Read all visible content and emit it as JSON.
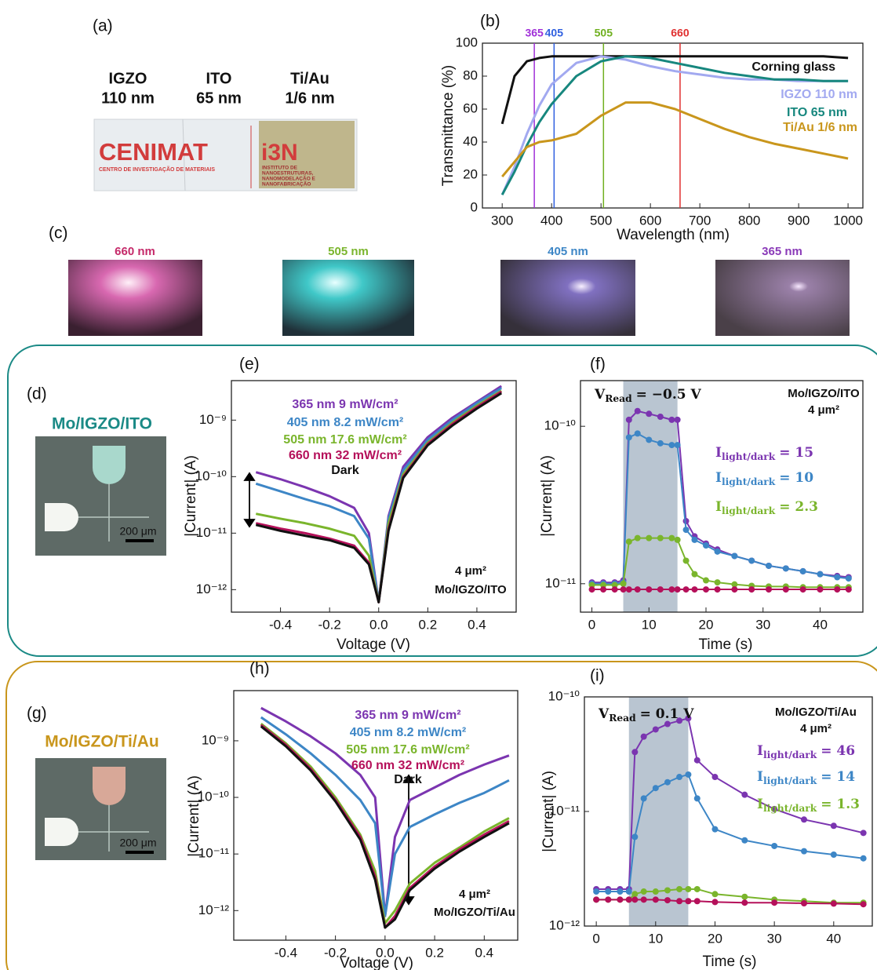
{
  "photo_a": {
    "panel_label": "(a)",
    "samples": [
      {
        "name": "IGZO",
        "thickness": "110 nm"
      },
      {
        "name": "ITO",
        "thickness": "65 nm"
      },
      {
        "name": "Ti/Au",
        "thickness": "1/6 nm"
      }
    ],
    "logo": {
      "left": "CENIMAT",
      "left_sub": "CENTRO DE INVESTIGAÇÃO DE MATERIAIS",
      "right": "i3N",
      "right_sub": [
        "INSTITUTO DE",
        "NANOESTRUTURAS,",
        "NANOMODELAÇÃO E",
        "NANOFABRICAÇÃO"
      ]
    }
  },
  "photo_c": {
    "panel_label": "(c)",
    "captions": [
      "660 nm",
      "505 nm",
      "405 nm",
      "365 nm"
    ],
    "caption_colors": [
      "#c52a6a",
      "#7ab52c",
      "#3d86c6",
      "#8a3ab8"
    ]
  },
  "device_d": {
    "panel_label": "(d)",
    "title": "Mo/IGZO/ITO",
    "color": "#1b8a86",
    "scale": "200 μm"
  },
  "device_g": {
    "panel_label": "(g)",
    "title": "Mo/IGZO/Ti/Au",
    "color": "#c9961c",
    "scale": "200 μm"
  },
  "chart_data": [
    {
      "type": "line",
      "panel_label": "(b)",
      "xlabel": "Wavelength (nm)",
      "ylabel": "Transmittance (%)",
      "x": [
        300,
        325,
        350,
        375,
        400,
        450,
        500,
        550,
        600,
        650,
        700,
        750,
        800,
        850,
        900,
        950,
        1000
      ],
      "xlim": [
        260,
        1030
      ],
      "xticks": [
        300,
        400,
        500,
        600,
        700,
        800,
        900,
        1000
      ],
      "ylim": [
        0,
        100
      ],
      "yticks": [
        0,
        20,
        40,
        60,
        80,
        100
      ],
      "series": [
        {
          "name": "Corning glass",
          "color": "#111111",
          "values": [
            51,
            80,
            89,
            91,
            92,
            92,
            92,
            92,
            92,
            92,
            92,
            92,
            92,
            92,
            92,
            92,
            91
          ]
        },
        {
          "name": "IGZO 110 nm",
          "color": "#a2a9f0",
          "values": [
            8,
            25,
            45,
            62,
            75,
            88,
            92,
            90,
            86,
            83,
            81,
            79,
            78,
            78,
            77,
            77,
            77
          ]
        },
        {
          "name": "ITO 65 nm",
          "color": "#17877e",
          "values": [
            8,
            22,
            38,
            52,
            63,
            80,
            89,
            92,
            91,
            88,
            85,
            82,
            80,
            78,
            78,
            77,
            77
          ]
        },
        {
          "name": "Ti/Au 1/6 nm",
          "color": "#c9961c",
          "values": [
            19,
            28,
            37,
            40,
            41,
            45,
            56,
            64,
            64,
            60,
            54,
            48,
            43,
            39,
            36,
            33,
            30
          ]
        }
      ],
      "wavelength_markers": {
        "values": [
          365,
          405,
          505,
          660
        ],
        "colors": [
          "#a030d8",
          "#3060e0",
          "#70b020",
          "#e03030"
        ]
      }
    },
    {
      "type": "line",
      "panel_label": "(e)",
      "ylog": true,
      "xlabel": "Voltage (V)",
      "ylabel": "|Current| (A)",
      "x": [
        -0.5,
        -0.4,
        -0.3,
        -0.2,
        -0.1,
        -0.04,
        0,
        0.04,
        0.1,
        0.2,
        0.3,
        0.4,
        0.5
      ],
      "xlim": [
        -0.6,
        0.56
      ],
      "xticks": [
        -0.4,
        -0.2,
        {
          "value": 0,
          "label": "0.0"
        },
        0.2,
        0.4
      ],
      "ylim": [
        4e-13,
        5e-09
      ],
      "yticks": [
        {
          "value": 1e-12,
          "label": "10⁻¹²"
        },
        {
          "value": 1e-11,
          "label": "10⁻¹¹"
        },
        {
          "value": 1e-10,
          "label": "10⁻¹⁰"
        },
        {
          "value": 1e-09,
          "label": "10⁻⁹"
        }
      ],
      "series": [
        {
          "name": "365 nm 9 mW/cm²",
          "color": "#7b35b0",
          "values": [
            1.2e-10,
            9e-11,
            6.5e-11,
            4.5e-11,
            2.8e-11,
            1e-11,
            6e-13,
            2e-11,
            1.5e-10,
            5e-10,
            1.1e-09,
            2.1e-09,
            4e-09
          ]
        },
        {
          "name": "405 nm 8.2 mW/cm²",
          "color": "#3d86c6",
          "values": [
            7.5e-11,
            5.5e-11,
            4e-11,
            3e-11,
            2e-11,
            8e-12,
            6e-13,
            1.8e-11,
            1.3e-10,
            4.5e-10,
            1e-09,
            2e-09,
            3.7e-09
          ]
        },
        {
          "name": "505 nm 17.6 mW/cm²",
          "color": "#7ab52c",
          "values": [
            2.2e-11,
            1.8e-11,
            1.5e-11,
            1.2e-11,
            9e-12,
            4e-12,
            6e-13,
            1.5e-11,
            1.1e-10,
            4e-10,
            9e-10,
            1.8e-09,
            3.3e-09
          ]
        },
        {
          "name": "660 nm 32 mW/cm²",
          "color": "#b5105a",
          "values": [
            1.5e-11,
            1.2e-11,
            1e-11,
            8e-12,
            6e-12,
            3e-12,
            6e-13,
            1.2e-11,
            1e-10,
            3.8e-10,
            8.5e-10,
            1.7e-09,
            3.2e-09
          ]
        },
        {
          "name": "Dark",
          "color": "#111111",
          "values": [
            1.4e-11,
            1.1e-11,
            9e-12,
            7.5e-12,
            5.5e-12,
            2.8e-12,
            6e-13,
            1.1e-11,
            9.5e-11,
            3.6e-10,
            8e-10,
            1.6e-09,
            3e-09
          ]
        }
      ],
      "annotations": [
        "4 μm²",
        "Mo/IGZO/ITO"
      ]
    },
    {
      "type": "line",
      "panel_label": "(f)",
      "ylog": true,
      "markers": true,
      "xlabel": "Time (s)",
      "ylabel": "|Current| (A)",
      "x": [
        0,
        2,
        4,
        5.5,
        6.5,
        8,
        10,
        12,
        14,
        15,
        16.5,
        18,
        20,
        22,
        25,
        28,
        31,
        34,
        37,
        40,
        43,
        45
      ],
      "xlim": [
        -2,
        47.5
      ],
      "xticks": [
        0,
        10,
        20,
        30,
        40
      ],
      "ylim": [
        6.6e-12,
        1.95e-10
      ],
      "yticks": [
        {
          "value": 1e-11,
          "label": "10⁻¹¹"
        },
        {
          "value": 1e-10,
          "label": "10⁻¹⁰"
        }
      ],
      "light_period": [
        5.5,
        15
      ],
      "series": [
        {
          "color": "#7b35b0",
          "values": [
            1.02e-11,
            1.02e-11,
            1.02e-11,
            1.05e-11,
            1.1e-10,
            1.25e-10,
            1.2e-10,
            1.15e-10,
            1.1e-10,
            1.1e-10,
            2.5e-11,
            2e-11,
            1.8e-11,
            1.65e-11,
            1.5e-11,
            1.4e-11,
            1.3e-11,
            1.25e-11,
            1.2e-11,
            1.15e-11,
            1.12e-11,
            1.1e-11
          ]
        },
        {
          "color": "#3d86c6",
          "values": [
            1e-11,
            1e-11,
            1e-11,
            1.02e-11,
            8.5e-11,
            9e-11,
            8.2e-11,
            7.8e-11,
            7.6e-11,
            7.6e-11,
            2.2e-11,
            1.9e-11,
            1.75e-11,
            1.6e-11,
            1.5e-11,
            1.4e-11,
            1.3e-11,
            1.25e-11,
            1.2e-11,
            1.15e-11,
            1.1e-11,
            1.08e-11
          ]
        },
        {
          "color": "#7ab52c",
          "values": [
            9.8e-12,
            9.8e-12,
            9.8e-12,
            1e-11,
            1.85e-11,
            1.95e-11,
            1.95e-11,
            1.95e-11,
            1.95e-11,
            1.9e-11,
            1.4e-11,
            1.15e-11,
            1.05e-11,
            1.02e-11,
            9.9e-12,
            9.7e-12,
            9.6e-12,
            9.6e-12,
            9.5e-12,
            9.5e-12,
            9.5e-12,
            9.5e-12
          ]
        },
        {
          "color": "#b5105a",
          "values": [
            9.2e-12,
            9.2e-12,
            9.2e-12,
            9.2e-12,
            9.2e-12,
            9.2e-12,
            9.2e-12,
            9.2e-12,
            9.2e-12,
            9.2e-12,
            9.2e-12,
            9.2e-12,
            9.2e-12,
            9.2e-12,
            9.2e-12,
            9.2e-12,
            9.2e-12,
            9.2e-12,
            9.2e-12,
            9.2e-12,
            9.2e-12,
            9.2e-12
          ]
        }
      ],
      "annotations": [
        "Mo/IGZO/ITO",
        "4 μm²"
      ],
      "read_voltage": {
        "symbol": "V",
        "subscript": "Read",
        "text": "= −0.5 V"
      },
      "ratios": [
        {
          "symbol": "I",
          "subscript": "light/dark",
          "text": "= 15",
          "color": "#7b35b0"
        },
        {
          "symbol": "I",
          "subscript": "light/dark",
          "text": "= 10",
          "color": "#3d86c6"
        },
        {
          "symbol": "I",
          "subscript": "light/dark",
          "text": "= 2.3",
          "color": "#7ab52c"
        }
      ]
    },
    {
      "type": "line",
      "panel_label": "(h)",
      "ylog": true,
      "xlabel": "Voltage (V)",
      "ylabel": "|Current| (A)",
      "x": [
        -0.5,
        -0.4,
        -0.3,
        -0.2,
        -0.1,
        -0.04,
        0,
        0.04,
        0.1,
        0.2,
        0.3,
        0.4,
        0.5
      ],
      "xlim": [
        -0.61,
        0.535
      ],
      "xticks": [
        -0.4,
        -0.2,
        {
          "value": 0,
          "label": "0.0"
        },
        0.2,
        0.4
      ],
      "ylim": [
        3e-13,
        7.7e-09
      ],
      "yticks": [
        {
          "value": 1e-12,
          "label": "10⁻¹²"
        },
        {
          "value": 1e-11,
          "label": "10⁻¹¹"
        },
        {
          "value": 1e-10,
          "label": "10⁻¹⁰"
        },
        {
          "value": 1e-09,
          "label": "10⁻⁹"
        }
      ],
      "series": [
        {
          "name": "365 nm 9 mW/cm²",
          "color": "#7b35b0",
          "values": [
            3.8e-09,
            2.2e-09,
            1.2e-09,
            6e-10,
            2.5e-10,
            1e-10,
            8e-13,
            2e-11,
            9e-11,
            1.5e-10,
            2.5e-10,
            3.8e-10,
            5.5e-10
          ]
        },
        {
          "name": "405 nm 8.2 mW/cm²",
          "color": "#3d86c6",
          "values": [
            2.6e-09,
            1.3e-09,
            6e-10,
            2.5e-10,
            9e-11,
            3.5e-11,
            8e-13,
            1e-11,
            3e-11,
            5e-11,
            8e-11,
            1.2e-10,
            2e-10
          ]
        },
        {
          "name": "505 nm 17.6 mW/cm²",
          "color": "#7ab52c",
          "values": [
            2e-09,
            9e-10,
            3.5e-10,
            1e-10,
            2.2e-11,
            5e-12,
            6e-13,
            1e-12,
            3e-12,
            7e-12,
            1.3e-11,
            2.5e-11,
            4.3e-11
          ]
        },
        {
          "name": "660 nm 32 mW/cm²",
          "color": "#b5105a",
          "values": [
            1.9e-09,
            8.5e-10,
            3.2e-10,
            9e-11,
            2e-11,
            4e-12,
            5e-13,
            8e-13,
            2.5e-12,
            6e-12,
            1.2e-11,
            2.2e-11,
            3.8e-11
          ]
        },
        {
          "name": "Dark",
          "color": "#111111",
          "values": [
            1.8e-09,
            8e-10,
            3e-10,
            8.5e-11,
            1.8e-11,
            3.5e-12,
            5e-13,
            7e-13,
            2.3e-12,
            5.5e-12,
            1.1e-11,
            2e-11,
            3.5e-11
          ]
        }
      ],
      "annotations": [
        "4 μm²",
        "Mo/IGZO/Ti/Au"
      ]
    },
    {
      "type": "line",
      "panel_label": "(i)",
      "ylog": true,
      "markers": true,
      "xlabel": "Time (s)",
      "ylabel": "|Current| (A)",
      "x": [
        0,
        2,
        4,
        5.5,
        6.5,
        8,
        10,
        12,
        14,
        15.5,
        17,
        20,
        25,
        30,
        35,
        40,
        45
      ],
      "xlim": [
        -2,
        46.5
      ],
      "xticks": [
        0,
        10,
        20,
        30,
        40
      ],
      "ylim": [
        1e-12,
        1e-10
      ],
      "yticks": [
        {
          "value": 1e-12,
          "label": "10⁻¹²"
        },
        {
          "value": 1e-11,
          "label": "10⁻¹¹"
        },
        {
          "value": 1e-10,
          "label": "10⁻¹⁰"
        }
      ],
      "light_period": [
        5.5,
        15.5
      ],
      "series": [
        {
          "color": "#7b35b0",
          "values": [
            2.1e-12,
            2.1e-12,
            2.1e-12,
            2.1e-12,
            3.3e-11,
            4.5e-11,
            5.2e-11,
            5.8e-11,
            6.2e-11,
            6.5e-11,
            2.8e-11,
            2e-11,
            1.4e-11,
            1.05e-11,
            8.5e-12,
            7.5e-12,
            6.5e-12
          ]
        },
        {
          "color": "#3d86c6",
          "values": [
            2e-12,
            2e-12,
            2e-12,
            2e-12,
            6e-12,
            1.3e-11,
            1.6e-11,
            1.8e-11,
            2e-11,
            2.1e-11,
            1.3e-11,
            7e-12,
            5.6e-12,
            5e-12,
            4.5e-12,
            4.2e-12,
            3.9e-12
          ]
        },
        {
          "color": "#7ab52c",
          "values": [
            1.7e-12,
            1.7e-12,
            1.7e-12,
            1.7e-12,
            1.9e-12,
            2e-12,
            2e-12,
            2.05e-12,
            2.1e-12,
            2.1e-12,
            2.1e-12,
            1.9e-12,
            1.8e-12,
            1.7e-12,
            1.65e-12,
            1.6e-12,
            1.6e-12
          ]
        },
        {
          "color": "#b5105a",
          "values": [
            1.7e-12,
            1.7e-12,
            1.7e-12,
            1.7e-12,
            1.7e-12,
            1.7e-12,
            1.7e-12,
            1.68e-12,
            1.65e-12,
            1.65e-12,
            1.65e-12,
            1.62e-12,
            1.6e-12,
            1.6e-12,
            1.58e-12,
            1.57e-12,
            1.55e-12
          ]
        }
      ],
      "annotations": [
        "Mo/IGZO/Ti/Au",
        "4 μm²"
      ],
      "read_voltage": {
        "symbol": "V",
        "subscript": "Read",
        "text": "= 0.1 V"
      },
      "ratios": [
        {
          "symbol": "I",
          "subscript": "light/dark",
          "text": "= 46",
          "color": "#7b35b0"
        },
        {
          "symbol": "I",
          "subscript": "light/dark",
          "text": "= 14",
          "color": "#3d86c6"
        },
        {
          "symbol": "I",
          "subscript": "light/dark",
          "text": "= 1.3",
          "color": "#7ab52c"
        }
      ]
    }
  ]
}
